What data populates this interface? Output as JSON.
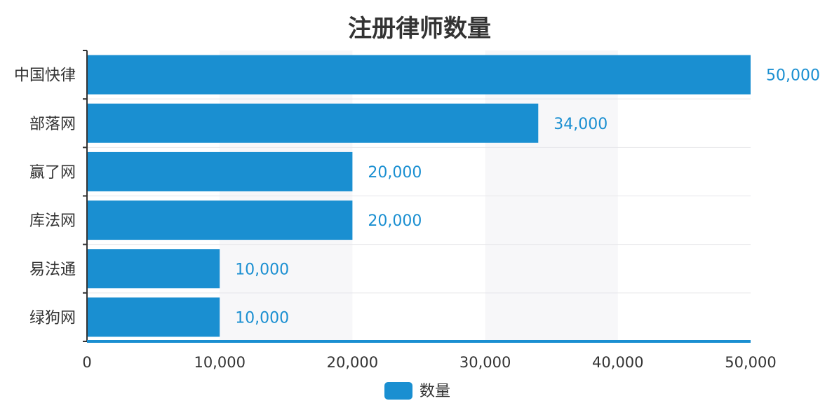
{
  "chart_data": {
    "type": "bar",
    "orientation": "horizontal",
    "title": "注册律师数量",
    "categories": [
      "中国快律",
      "部落网",
      "赢了网",
      "库法网",
      "易法通",
      "绿狗网"
    ],
    "series": [
      {
        "name": "数量",
        "values": [
          50000,
          34000,
          20000,
          20000,
          10000,
          10000
        ]
      }
    ],
    "data_labels": [
      "50,000",
      "34,000",
      "20,000",
      "20,000",
      "10,000",
      "10,000"
    ],
    "xlim": [
      0,
      50000
    ],
    "x_ticks": [
      0,
      10000,
      20000,
      30000,
      40000,
      50000
    ],
    "x_tick_labels": [
      "0",
      "10,000",
      "20,000",
      "30,000",
      "40,000",
      "50,000"
    ],
    "legend_position": "bottom-center",
    "grid": true,
    "colors": {
      "bar": "#1a8fd1",
      "axis": "#1a8fd1",
      "band": "#f7f7f9",
      "grid": "#e6e6ea",
      "label": "#1a8fd1"
    }
  }
}
